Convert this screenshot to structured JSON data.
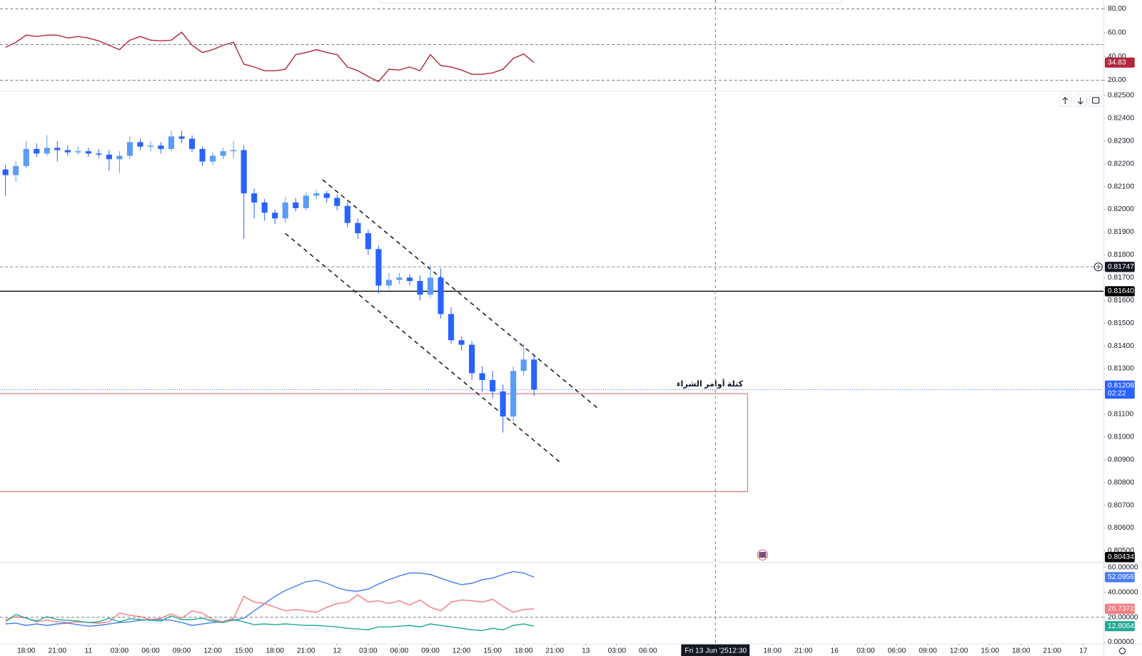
{
  "chart_data": [
    {
      "type": "line",
      "xlim": [
        -2.53,
        103.94
      ],
      "x": [
        -2,
        -1,
        0,
        1,
        2,
        3,
        4,
        5,
        6,
        7,
        8,
        9,
        10,
        11,
        12,
        13,
        14,
        15,
        16,
        17,
        18,
        19,
        20,
        21,
        22,
        23,
        24,
        25,
        26,
        27,
        28,
        29,
        30,
        31,
        32,
        33,
        34,
        35,
        36,
        37,
        38,
        39,
        40,
        41,
        42,
        43,
        44,
        45,
        46,
        47,
        48,
        49
      ],
      "ylim": [
        11,
        87.5
      ],
      "yticks": [
        {
          "value": 80,
          "label": "80.00"
        },
        {
          "value": 60,
          "label": "60.00"
        },
        {
          "value": 40,
          "label": "40.00"
        },
        {
          "value": 20,
          "label": "20.00"
        }
      ],
      "hlines": [
        80,
        50,
        20
      ],
      "series": [
        {
          "color": "#b2283a",
          "values": [
            47.6,
            51.9,
            58.0,
            56.8,
            58.0,
            58.0,
            55.5,
            56.8,
            55.5,
            53.1,
            49.4,
            45.7,
            53.7,
            56.8,
            53.7,
            53.1,
            53.7,
            60.4,
            49.4,
            43.3,
            45.7,
            49.4,
            51.9,
            33.5,
            31.1,
            28.0,
            28.0,
            29.2,
            41.5,
            43.3,
            45.7,
            43.3,
            41.5,
            31.1,
            28.0,
            23.1,
            18.8,
            29.2,
            28.6,
            31.1,
            28.0,
            41.5,
            32.3,
            31.1,
            28.6,
            25.0,
            25.0,
            26.2,
            29.2,
            38.4,
            42.1,
            34.83
          ]
        }
      ]
    },
    {
      "type": "candlestick",
      "xlim": [
        -2.53,
        103.94
      ],
      "ylim": [
        0.8045,
        0.8252
      ],
      "up_color": "#5b9cf6",
      "down_color": "#2962ff",
      "x": [
        -2,
        -1,
        0,
        1,
        2,
        3,
        4,
        5,
        6,
        7,
        8,
        9,
        10,
        11,
        12,
        13,
        14,
        15,
        16,
        17,
        18,
        19,
        20,
        21,
        22,
        23,
        24,
        25,
        26,
        27,
        28,
        29,
        30,
        31,
        32,
        33,
        34,
        35,
        36,
        37,
        38,
        39,
        40,
        41,
        42,
        43,
        44,
        45,
        46,
        47,
        48,
        49
      ],
      "open": [
        0.82175,
        0.8215,
        0.8219,
        0.82265,
        0.82245,
        0.8227,
        0.8226,
        0.8225,
        0.82255,
        0.82245,
        0.8224,
        0.8222,
        0.82235,
        0.82295,
        0.82275,
        0.8228,
        0.82265,
        0.8232,
        0.8231,
        0.82265,
        0.8221,
        0.82235,
        0.82255,
        0.8226,
        0.8207,
        0.8203,
        0.81985,
        0.8196,
        0.8203,
        0.82005,
        0.8206,
        0.8207,
        0.8205,
        0.82015,
        0.8194,
        0.81895,
        0.81825,
        0.81665,
        0.8169,
        0.817,
        0.81685,
        0.81625,
        0.817,
        0.8154,
        0.81425,
        0.81405,
        0.8128,
        0.8125,
        0.812,
        0.8109,
        0.8129,
        0.8134
      ],
      "high": [
        0.82195,
        0.8221,
        0.823,
        0.8229,
        0.82325,
        0.823,
        0.8228,
        0.82275,
        0.8227,
        0.82265,
        0.8226,
        0.82255,
        0.8232,
        0.8231,
        0.823,
        0.82295,
        0.82345,
        0.82345,
        0.82325,
        0.82275,
        0.8225,
        0.8227,
        0.823,
        0.8228,
        0.8209,
        0.82045,
        0.82,
        0.82055,
        0.8205,
        0.82075,
        0.82085,
        0.8208,
        0.82065,
        0.8203,
        0.8196,
        0.8191,
        0.8184,
        0.8172,
        0.8172,
        0.81715,
        0.8171,
        0.81755,
        0.8174,
        0.8157,
        0.8144,
        0.8142,
        0.8131,
        0.8129,
        0.8123,
        0.8131,
        0.8141,
        0.8136
      ],
      "low": [
        0.8206,
        0.8212,
        0.8218,
        0.8223,
        0.82235,
        0.8221,
        0.82235,
        0.8224,
        0.8223,
        0.82225,
        0.8217,
        0.8216,
        0.8222,
        0.8226,
        0.82255,
        0.82245,
        0.82255,
        0.8229,
        0.8225,
        0.8219,
        0.82195,
        0.8222,
        0.82225,
        0.8187,
        0.8196,
        0.8195,
        0.81935,
        0.8194,
        0.8199,
        0.81995,
        0.82045,
        0.8203,
        0.81995,
        0.8192,
        0.8187,
        0.818,
        0.8163,
        0.8165,
        0.8167,
        0.81665,
        0.816,
        0.8161,
        0.8152,
        0.8141,
        0.8138,
        0.8125,
        0.812,
        0.8117,
        0.8102,
        0.8107,
        0.8127,
        0.8118
      ],
      "close": [
        0.8215,
        0.8219,
        0.82265,
        0.82245,
        0.8227,
        0.8226,
        0.8225,
        0.82255,
        0.82245,
        0.8224,
        0.8222,
        0.82235,
        0.82295,
        0.82275,
        0.8228,
        0.82265,
        0.8232,
        0.8231,
        0.82265,
        0.8221,
        0.82235,
        0.82255,
        0.8226,
        0.8207,
        0.8203,
        0.81985,
        0.8196,
        0.8203,
        0.82005,
        0.8206,
        0.8207,
        0.8205,
        0.82015,
        0.8194,
        0.81895,
        0.81825,
        0.81665,
        0.8169,
        0.817,
        0.81685,
        0.81625,
        0.817,
        0.8154,
        0.81425,
        0.81405,
        0.8128,
        0.8125,
        0.812,
        0.8109,
        0.8129,
        0.8134,
        0.81208
      ],
      "yticks": [
        {
          "value": 0.825,
          "label": "0.82500"
        },
        {
          "value": 0.824,
          "label": "0.82400"
        },
        {
          "value": 0.823,
          "label": "0.82300"
        },
        {
          "value": 0.822,
          "label": "0.82200"
        },
        {
          "value": 0.821,
          "label": "0.82100"
        },
        {
          "value": 0.82,
          "label": "0.82000"
        },
        {
          "value": 0.819,
          "label": "0.81900"
        },
        {
          "value": 0.818,
          "label": "0.81800"
        },
        {
          "value": 0.817,
          "label": "0.81700"
        },
        {
          "value": 0.816,
          "label": "0.81600"
        },
        {
          "value": 0.815,
          "label": "0.81500"
        },
        {
          "value": 0.814,
          "label": "0.81400"
        },
        {
          "value": 0.813,
          "label": "0.81300"
        },
        {
          "value": 0.811,
          "label": "0.81100"
        },
        {
          "value": 0.81,
          "label": "0.81000"
        },
        {
          "value": 0.809,
          "label": "0.80900"
        },
        {
          "value": 0.808,
          "label": "0.80800"
        },
        {
          "value": 0.807,
          "label": "0.80700"
        },
        {
          "value": 0.806,
          "label": "0.80600"
        },
        {
          "value": 0.805,
          "label": "0.80500"
        }
      ],
      "xticks": [
        {
          "value": 0,
          "label": "18:00"
        },
        {
          "value": 3,
          "label": "21:00"
        },
        {
          "value": 6,
          "label": "11"
        },
        {
          "value": 9,
          "label": "03:00"
        },
        {
          "value": 12,
          "label": "06:00"
        },
        {
          "value": 15,
          "label": "09:00"
        },
        {
          "value": 18,
          "label": "12:00"
        },
        {
          "value": 21,
          "label": "15:00"
        },
        {
          "value": 24,
          "label": "18:00"
        },
        {
          "value": 27,
          "label": "21:00"
        },
        {
          "value": 30,
          "label": "12"
        },
        {
          "value": 33,
          "label": "03:00"
        },
        {
          "value": 36,
          "label": "06:00"
        },
        {
          "value": 39,
          "label": "09:00"
        },
        {
          "value": 42,
          "label": "12:00"
        },
        {
          "value": 45,
          "label": "15:00"
        },
        {
          "value": 48,
          "label": "18:00"
        },
        {
          "value": 51,
          "label": "21:00"
        },
        {
          "value": 54,
          "label": "13"
        },
        {
          "value": 57,
          "label": "03:00"
        },
        {
          "value": 60,
          "label": "06:00"
        },
        {
          "value": 72,
          "label": "18:00"
        },
        {
          "value": 75,
          "label": "21:00"
        },
        {
          "value": 78,
          "label": "16"
        },
        {
          "value": 81,
          "label": "03:00"
        },
        {
          "value": 84,
          "label": "06:00"
        },
        {
          "value": 87,
          "label": "09:00"
        },
        {
          "value": 90,
          "label": "12:00"
        },
        {
          "value": 93,
          "label": "15:00"
        },
        {
          "value": 96,
          "label": "18:00"
        },
        {
          "value": 99,
          "label": "21:00"
        },
        {
          "value": 102,
          "label": "17"
        }
      ],
      "levels": [
        {
          "value": 0.81747,
          "label": "0.81747",
          "style": "dashed",
          "color": "#9598a1",
          "label_color": "#131722"
        },
        {
          "value": 0.8164,
          "label": "0.81640",
          "style": "solid",
          "color": "#000000",
          "label_color": "#000000"
        },
        {
          "value": 0.80434,
          "label": "0.80434",
          "style": "none",
          "color": "#000000",
          "label_color": "#000000"
        }
      ],
      "current": {
        "value": 0.81208,
        "label": "0.81208",
        "countdown": "02:22",
        "color": "#2962ff"
      },
      "zone": {
        "x1": 69.6,
        "top": 0.8119,
        "bottom": 0.8076,
        "color": "#d9636b",
        "label": "كتلة أوامر الشراء"
      },
      "trendlines": [
        {
          "x": [
            28.6,
            55.1
          ],
          "y": [
            0.8213,
            0.81128
          ]
        },
        {
          "x": [
            25.0,
            51.7
          ],
          "y": [
            0.81894,
            0.80882
          ]
        }
      ],
      "crosshair": {
        "x": 66.5,
        "label": "Fri 13 Jun '25",
        "time": "12:30"
      }
    },
    {
      "type": "line",
      "xlim": [
        -2.53,
        103.94
      ],
      "x": [
        -2,
        -1,
        0,
        1,
        2,
        3,
        4,
        5,
        6,
        7,
        8,
        9,
        10,
        11,
        12,
        13,
        14,
        15,
        16,
        17,
        18,
        19,
        20,
        21,
        22,
        23,
        24,
        25,
        26,
        27,
        28,
        29,
        30,
        31,
        32,
        33,
        34,
        35,
        36,
        37,
        38,
        39,
        40,
        41,
        42,
        43,
        44,
        45,
        46,
        47,
        48,
        49
      ],
      "ylim": [
        -1.2,
        64.1
      ],
      "yticks": [
        {
          "value": 60,
          "label": "60.00000"
        },
        {
          "value": 40,
          "label": "40.00000"
        },
        {
          "value": 20,
          "label": "20.00000"
        },
        {
          "value": 0,
          "label": "0.00000"
        }
      ],
      "hlines": [
        20
      ],
      "series": [
        {
          "color": "#4a7cf0",
          "values": [
            14.6,
            15.2,
            13.4,
            14.6,
            13.4,
            14.6,
            15.2,
            14.0,
            12.8,
            13.4,
            14.6,
            15.7,
            16.3,
            17.5,
            18.1,
            18.1,
            17.5,
            15.7,
            13.4,
            14.6,
            15.7,
            16.3,
            17.5,
            19.2,
            25.1,
            30.9,
            36.7,
            41.4,
            44.9,
            48.4,
            49.6,
            47.2,
            43.7,
            41.4,
            40.8,
            42.6,
            46.6,
            50.1,
            53.1,
            55.4,
            55.4,
            54.2,
            51.3,
            48.4,
            46.1,
            47.2,
            50.1,
            51.3,
            54.2,
            56.6,
            55.4,
            52.09567
          ]
        },
        {
          "color": "#f47c82",
          "values": [
            18.1,
            20.4,
            19.2,
            16.3,
            17.5,
            16.3,
            15.7,
            16.3,
            15.7,
            15.2,
            16.3,
            23.3,
            21.6,
            20.4,
            18.1,
            19.2,
            22.7,
            19.2,
            25.1,
            23.3,
            18.1,
            16.3,
            19.2,
            36.7,
            32.1,
            30.9,
            28.0,
            25.1,
            26.2,
            25.1,
            23.9,
            28.0,
            30.9,
            32.1,
            37.9,
            32.1,
            33.2,
            30.9,
            33.2,
            29.7,
            33.8,
            28.0,
            25.1,
            32.1,
            33.8,
            33.2,
            32.1,
            34.4,
            28.6,
            23.9,
            26.2,
            26.73721
          ]
        },
        {
          "color": "#22ab94",
          "values": [
            16.3,
            22.2,
            19.2,
            16.9,
            20.4,
            18.1,
            17.5,
            16.9,
            15.7,
            16.3,
            19.2,
            16.3,
            18.7,
            18.1,
            17.5,
            16.9,
            21.0,
            18.1,
            18.1,
            19.2,
            16.9,
            15.7,
            18.1,
            16.3,
            14.0,
            14.6,
            14.0,
            14.6,
            14.0,
            13.4,
            13.4,
            12.8,
            12.2,
            11.1,
            10.5,
            9.9,
            12.2,
            12.2,
            12.8,
            13.4,
            12.2,
            14.6,
            13.4,
            12.2,
            11.1,
            9.9,
            9.3,
            11.1,
            9.9,
            13.4,
            14.6,
            12.80642
          ]
        }
      ]
    }
  ]
}
